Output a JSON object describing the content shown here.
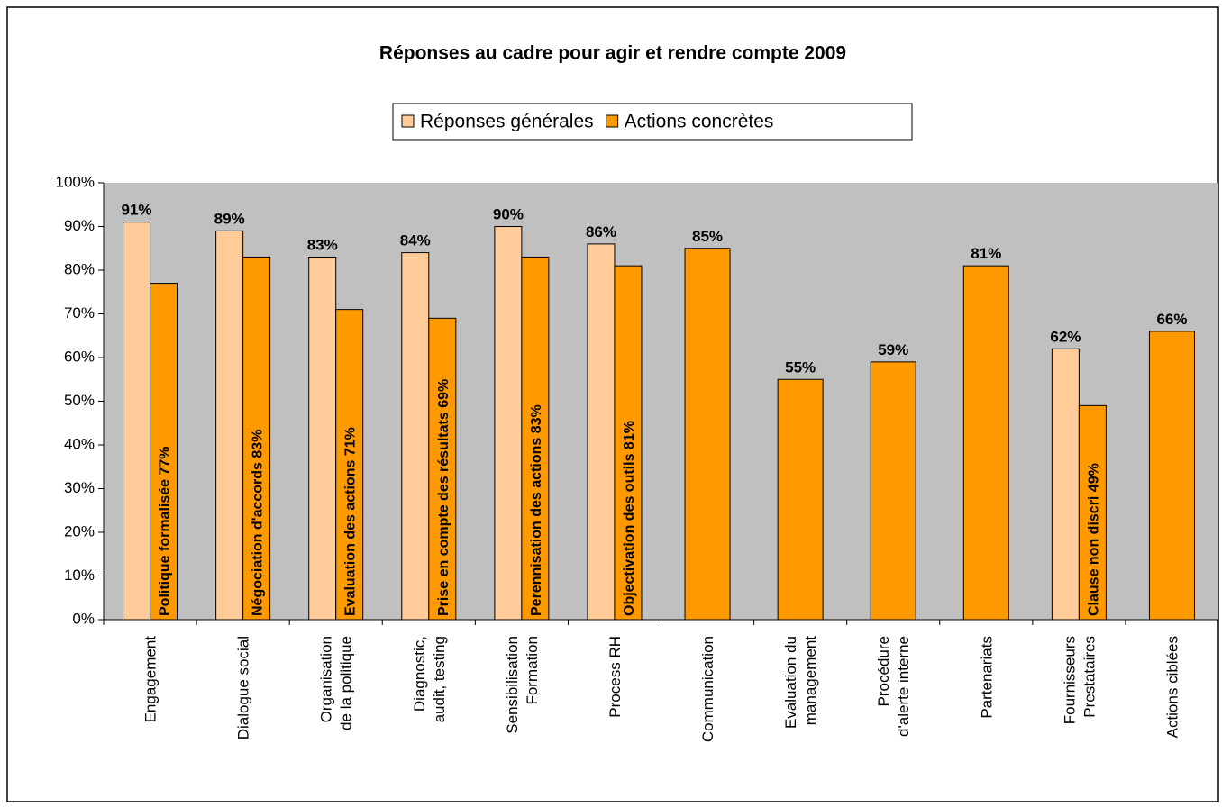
{
  "chart_data": {
    "type": "bar",
    "title": "Réponses au cadre pour agir et rendre compte 2009",
    "categories": [
      "Engagement",
      "Dialogue social",
      "Organisation\nde la politique",
      "Diagnostic,\naudit, testing",
      "Sensibilisation\nFormation",
      "Process RH",
      "Communication",
      "Evaluation du\nmanagement",
      "Procédure\nd'alerte interne",
      "Partenariats",
      "Fournisseurs\nPrestataires",
      "Actions ciblées"
    ],
    "series": [
      {
        "name": "Réponses générales",
        "color": "#ffcc99",
        "values": [
          91,
          89,
          83,
          84,
          90,
          86,
          null,
          null,
          null,
          null,
          62,
          null
        ],
        "value_labels": [
          "91%",
          "89%",
          "83%",
          "84%",
          "90%",
          "86%",
          null,
          null,
          null,
          null,
          "62%",
          null
        ]
      },
      {
        "name": "Actions concrètes",
        "color": "#ff9900",
        "values": [
          77,
          83,
          71,
          69,
          83,
          81,
          85,
          55,
          59,
          81,
          49,
          66
        ],
        "value_labels": [
          "Politique formalisée 77%",
          "Négociation d'accords 83%",
          "Evaluation des actions 71%",
          "Prise en compte des résultats 69%",
          "Perennisation des actions 83%",
          "Objectivation des outils 81%",
          "85%",
          "55%",
          "59%",
          "81%",
          "Clause non discri 49%",
          "66%"
        ]
      }
    ],
    "ylim": [
      0,
      100
    ],
    "yticks": [
      {
        "value": 0,
        "label": "0%"
      },
      {
        "value": 10,
        "label": "10%"
      },
      {
        "value": 20,
        "label": "20%"
      },
      {
        "value": 30,
        "label": "30%"
      },
      {
        "value": 40,
        "label": "40%"
      },
      {
        "value": 50,
        "label": "50%"
      },
      {
        "value": 60,
        "label": "60%"
      },
      {
        "value": 70,
        "label": "70%"
      },
      {
        "value": 80,
        "label": "80%"
      },
      {
        "value": 90,
        "label": "90%"
      },
      {
        "value": 100,
        "label": "100%"
      }
    ],
    "legend": "top"
  }
}
